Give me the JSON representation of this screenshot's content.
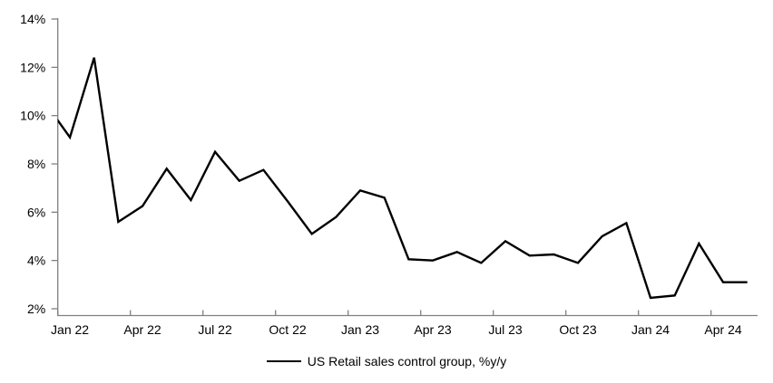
{
  "chart_data": {
    "type": "line",
    "title": "",
    "xlabel": "",
    "ylabel": "",
    "background_color": "#ffffff",
    "axis_color": "#808080",
    "line_color": "#000000",
    "grid": false,
    "legend_position": "bottom-center",
    "ylim": [
      2,
      14
    ],
    "ytick_values": [
      2,
      4,
      6,
      8,
      10,
      12,
      14
    ],
    "ytick_labels": [
      "2%",
      "4%",
      "6%",
      "8%",
      "10%",
      "12%",
      "14%"
    ],
    "x": [
      "Dec 21",
      "Jan 22",
      "Feb 22",
      "Mar 22",
      "Apr 22",
      "May 22",
      "Jun 22",
      "Jul 22",
      "Aug 22",
      "Sep 22",
      "Oct 22",
      "Nov 22",
      "Dec 22",
      "Jan 23",
      "Feb 23",
      "Mar 23",
      "Apr 23",
      "May 23",
      "Jun 23",
      "Jul 23",
      "Aug 23",
      "Sep 23",
      "Oct 23",
      "Nov 23",
      "Dec 23",
      "Jan 24",
      "Feb 24",
      "Mar 24",
      "Apr 24",
      "May 24"
    ],
    "xticks": [
      {
        "label": "Jan 22",
        "month_index": 1
      },
      {
        "label": "Apr 22",
        "month_index": 4
      },
      {
        "label": "Jul 22",
        "month_index": 7
      },
      {
        "label": "Oct 22",
        "month_index": 10
      },
      {
        "label": "Jan 23",
        "month_index": 13
      },
      {
        "label": "Apr 23",
        "month_index": 16
      },
      {
        "label": "Jul 23",
        "month_index": 19
      },
      {
        "label": "Oct 23",
        "month_index": 22
      },
      {
        "label": "Jan 24",
        "month_index": 25
      },
      {
        "label": "Apr 24",
        "month_index": 28
      }
    ],
    "series": [
      {
        "name": "US Retail sales control group, %y/y",
        "color": "#000000",
        "values": [
          10.5,
          9.1,
          12.4,
          5.6,
          6.25,
          7.8,
          6.5,
          8.5,
          7.3,
          7.75,
          6.45,
          5.1,
          5.8,
          6.9,
          6.6,
          4.05,
          4.0,
          4.35,
          3.9,
          4.8,
          4.2,
          4.25,
          3.9,
          5.0,
          5.55,
          2.45,
          2.55,
          4.7,
          3.1,
          3.1
        ]
      }
    ]
  }
}
